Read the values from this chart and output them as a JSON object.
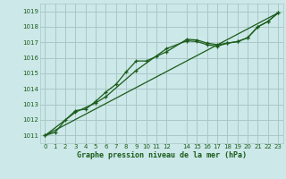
{
  "title": "Graphe pression niveau de la mer (hPa)",
  "bg_color": "#cce8e8",
  "grid_color": "#aac8c8",
  "line_color": "#1a5c1a",
  "marker_color": "#1a5c1a",
  "tick_color": "#1a5c1a",
  "xlim": [
    -0.5,
    23.5
  ],
  "ylim": [
    1010.5,
    1019.5
  ],
  "yticks": [
    1011,
    1012,
    1013,
    1014,
    1015,
    1016,
    1017,
    1018,
    1019
  ],
  "xticks": [
    0,
    1,
    2,
    3,
    4,
    5,
    6,
    7,
    8,
    9,
    10,
    11,
    12,
    14,
    15,
    16,
    17,
    18,
    19,
    20,
    21,
    22,
    23
  ],
  "series1_x": [
    0,
    1,
    2,
    3,
    4,
    5,
    6,
    7,
    8,
    9,
    10,
    11,
    12,
    14,
    15,
    16,
    17,
    18,
    19,
    20,
    21,
    22,
    23
  ],
  "series1_y": [
    1011.0,
    1011.2,
    1012.0,
    1012.6,
    1012.7,
    1013.2,
    1013.8,
    1014.3,
    1015.1,
    1015.8,
    1015.8,
    1016.1,
    1016.4,
    1017.2,
    1017.15,
    1016.95,
    1016.85,
    1016.95,
    1017.05,
    1017.3,
    1018.0,
    1018.35,
    1018.9
  ],
  "series2_x": [
    0,
    3,
    5,
    6,
    9,
    12,
    14,
    15,
    16,
    17,
    18,
    19,
    20,
    21,
    22,
    23
  ],
  "series2_y": [
    1011.0,
    1012.5,
    1013.1,
    1013.5,
    1015.2,
    1016.6,
    1017.1,
    1017.05,
    1016.85,
    1016.75,
    1016.95,
    1017.05,
    1017.3,
    1018.0,
    1018.35,
    1018.9
  ],
  "series3_x": [
    0,
    23
  ],
  "series3_y": [
    1011.0,
    1018.9
  ]
}
